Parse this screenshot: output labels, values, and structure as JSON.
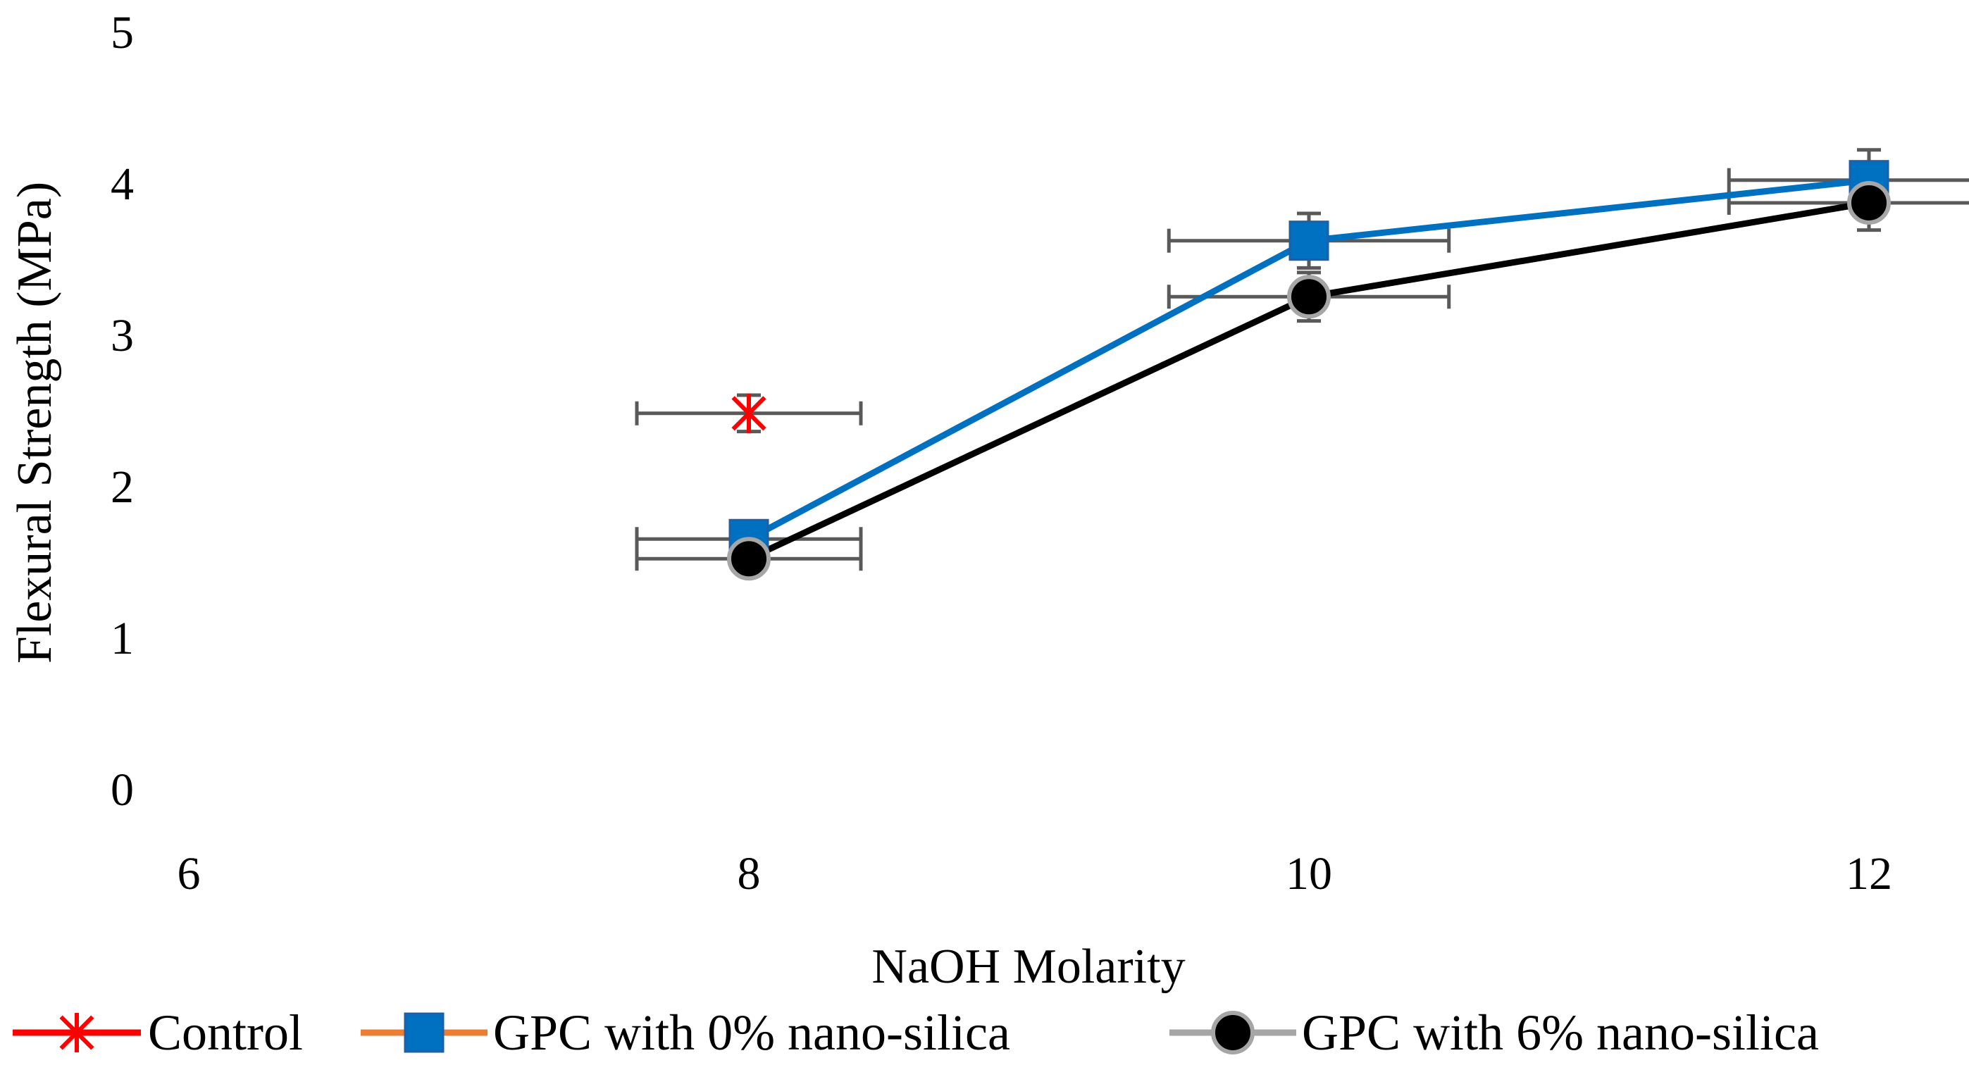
{
  "chart_data": {
    "type": "scatter",
    "title": "",
    "xlabel": "NaOH Molarity",
    "ylabel": "Flexural Strength (MPa)",
    "xlim": [
      6,
      12
    ],
    "ylim": [
      0,
      5
    ],
    "x_ticks": [
      "6",
      "8",
      "10",
      "12"
    ],
    "y_ticks": [
      "0",
      "1",
      "2",
      "3",
      "4",
      "5"
    ],
    "grid": false,
    "legend_position": "bottom",
    "series": [
      {
        "name": "Control",
        "marker": "star",
        "line": false,
        "legend_line_color": "#ff0000",
        "color": "#ff0000",
        "x": [
          8
        ],
        "y": [
          2.48
        ],
        "x_err": [
          0.4
        ],
        "y_err": [
          0.12
        ]
      },
      {
        "name": "GPC with 0% nano-silica",
        "marker": "square",
        "line": true,
        "legend_line_color": "#ed7d31",
        "color": "#0070c0",
        "x": [
          8,
          10,
          12
        ],
        "y": [
          1.65,
          3.62,
          4.02
        ],
        "x_err": [
          0.4,
          0.5,
          0.5
        ],
        "y_err": [
          0.08,
          0.18,
          0.2
        ]
      },
      {
        "name": "GPC with 6% nano-silica",
        "marker": "circle",
        "line": true,
        "legend_line_color": "#a6a6a6",
        "color": "#000000",
        "x": [
          8,
          10,
          12
        ],
        "y": [
          1.52,
          3.25,
          3.87
        ],
        "x_err": [
          0.4,
          0.5,
          0.5
        ],
        "y_err": [
          0.08,
          0.16,
          0.18
        ]
      }
    ]
  }
}
